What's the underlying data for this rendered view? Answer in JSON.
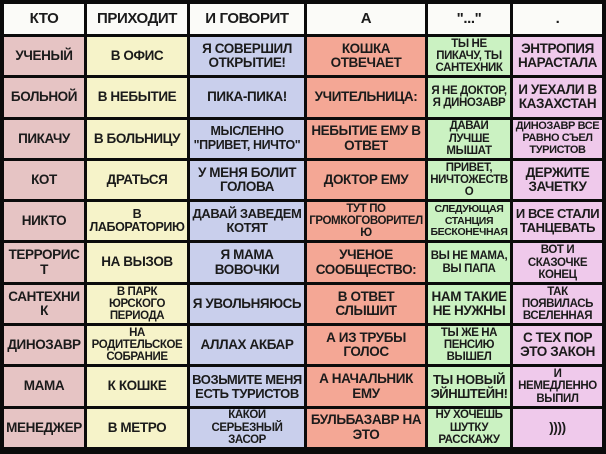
{
  "table": {
    "headers": [
      "КТО",
      "ПРИХОДИТ",
      "И ГОВОРИТ",
      "А",
      "\"...\"",
      "."
    ],
    "rows": [
      [
        "УЧЕНЫЙ",
        "В ОФИС",
        "Я СОВЕРШИЛ ОТКРЫТИЕ!",
        "КОШКА ОТВЕЧАЕТ",
        "ТЫ НЕ ПИКАЧУ, ТЫ САНТЕХНИК",
        "ЭНТРОПИЯ НАРАСТАЛА"
      ],
      [
        "БОЛЬНОЙ",
        "В НЕБЫТИЕ",
        "ПИКА-ПИКА!",
        "УЧИТЕЛЬНИЦА:",
        "Я НЕ ДОКТОР, Я ДИНОЗАВР",
        "И УЕХАЛИ В КАЗАХСТАН"
      ],
      [
        "ПИКАЧУ",
        "В БОЛЬНИЦУ",
        "МЫСЛЕННО \"ПРИВЕТ, НИЧТО\"",
        "НЕБЫТИЕ ЕМУ В ОТВЕТ",
        "ДАВАЙ ЛУЧШЕ МЫШАТ",
        "ДИНОЗАВР ВСЕ РАВНО СЪЕЛ ТУРИСТОВ"
      ],
      [
        "КОТ",
        "ДРАТЬСЯ",
        "У МЕНЯ БОЛИТ ГОЛОВА",
        "ДОКТОР ЕМУ",
        "ПРИВЕТ, НИЧТОЖЕСТВО",
        "ДЕРЖИТЕ ЗАЧЕТКУ"
      ],
      [
        "НИКТО",
        "В ЛАБОРАТОРИЮ",
        "ДАВАЙ ЗАВЕДЕМ КОТЯТ",
        "ТУТ ПО ГРОМКОГОВОРИТЕЛЮ",
        "СЛЕДУЮЩАЯ СТАНЦИЯ БЕСКОНЕЧНАЯ",
        "И ВСЕ СТАЛИ ТАНЦЕВАТЬ"
      ],
      [
        "ТЕРРОРИСТ",
        "НА ВЫЗОВ",
        "Я МАМА ВОВОЧКИ",
        "УЧЕНОЕ СООБЩЕСТВО:",
        "ВЫ НЕ МАМА, ВЫ ПАПА",
        "ВОТ И СКАЗОЧКЕ КОНЕЦ"
      ],
      [
        "САНТЕХНИК",
        "В ПАРК ЮРСКОГО ПЕРИОДА",
        "Я УВОЛЬНЯЮСЬ",
        "В ОТВЕТ СЛЫШИТ",
        "НАМ ТАКИЕ НЕ НУЖНЫ",
        "ТАК ПОЯВИЛАСЬ ВСЕЛЕННАЯ"
      ],
      [
        "ДИНОЗАВР",
        "НА РОДИТЕЛЬСКОЕ СОБРАНИЕ",
        "АЛЛАХ АКБАР",
        "А ИЗ ТРУБЫ ГОЛОС",
        "ТЫ ЖЕ НА ПЕНСИЮ ВЫШЕЛ",
        "С ТЕХ ПОР ЭТО ЗАКОН"
      ],
      [
        "МАМА",
        "К КОШКЕ",
        "ВОЗЬМИТЕ МЕНЯ ЕСТЬ ТУРИСТОВ",
        "А НАЧАЛЬНИК ЕМУ",
        "ТЫ НОВЫЙ ЭЙНШТЕЙН!",
        "И НЕМЕДЛЕННО ВЫПИЛ"
      ],
      [
        "МЕНЕДЖЕР",
        "В МЕТРО",
        "КАКОЙ СЕРЬЕЗНЫЙ ЗАСОР",
        "БУЛЬБАЗАВР НА ЭТО",
        "НУ ХОЧЕШЬ ШУТКУ РАССКАЖУ",
        "))))"
      ]
    ]
  },
  "colors": {
    "border": "#0b0b0b",
    "text": "#1b1b1b",
    "header_fill": "#fbfbf8",
    "column_fills": [
      "#e6c4c4",
      "#f6f3c9",
      "#c9cfec",
      "#f4a795",
      "#cbf2c2",
      "#efc9eb"
    ]
  }
}
